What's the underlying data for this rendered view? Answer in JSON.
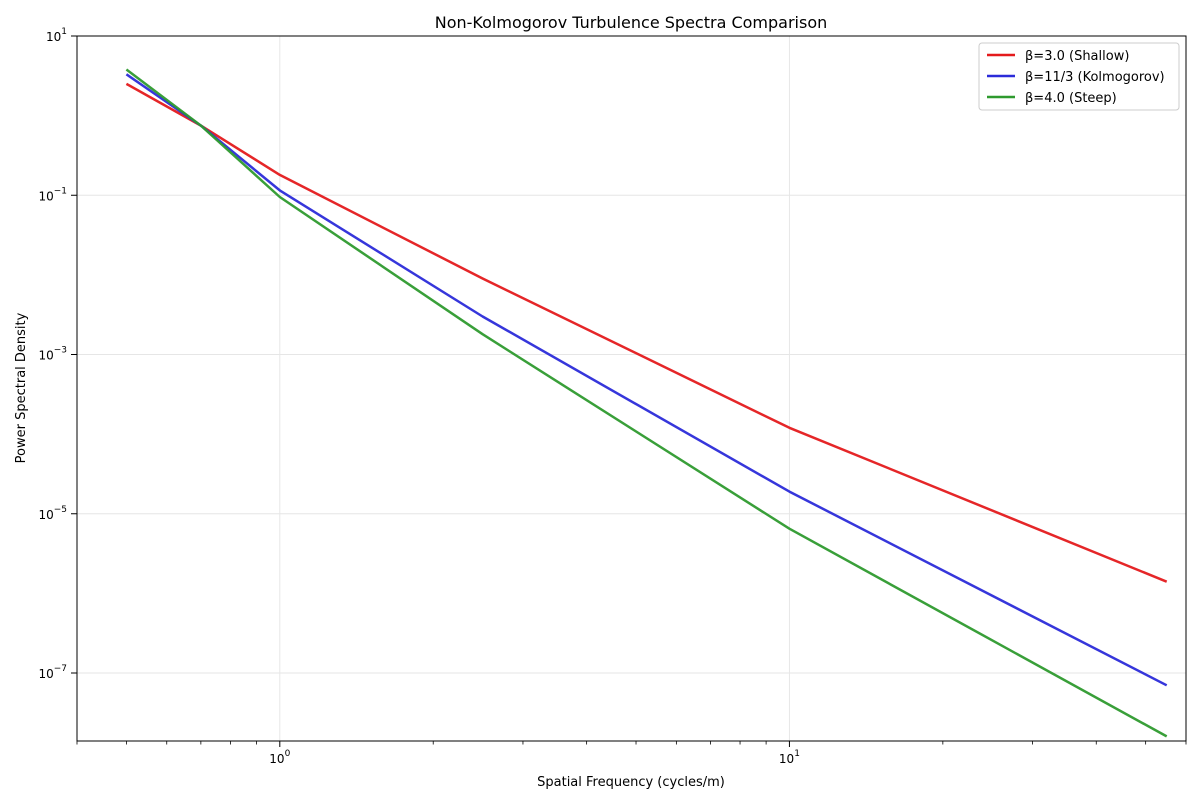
{
  "chart_data": {
    "type": "line",
    "title": "Non-Kolmogorov Turbulence Spectra Comparison",
    "xlabel": "Spatial Frequency (cycles/m)",
    "ylabel": "Power Spectral Density",
    "xscale": "log",
    "yscale": "log",
    "xlim": [
      0.4,
      60
    ],
    "ylim": [
      1.4e-08,
      10
    ],
    "xticks": [
      {
        "value": 1,
        "base": "10",
        "exp": "0"
      },
      {
        "value": 10,
        "base": "10",
        "exp": "1"
      }
    ],
    "yticks": [
      {
        "value": 10,
        "base": "10",
        "exp": "1"
      },
      {
        "value": 0.1,
        "base": "10",
        "exp": "−1"
      },
      {
        "value": 0.001,
        "base": "10",
        "exp": "−3"
      },
      {
        "value": 1e-05,
        "base": "10",
        "exp": "−5"
      },
      {
        "value": 1e-07,
        "base": "10",
        "exp": "−7"
      }
    ],
    "grid": true,
    "legend_position": "top-right",
    "series": [
      {
        "name": "β=3.0 (Shallow)",
        "color": "#e41a1c",
        "x": [
          0.5,
          0.7,
          1.0,
          2.5,
          10,
          55
        ],
        "y": [
          2.5,
          0.75,
          0.18,
          0.009,
          0.00012,
          1.4e-06
        ]
      },
      {
        "name": "β=11/3 (Kolmogorov)",
        "color": "#2b2bd9",
        "x": [
          0.5,
          0.7,
          1.0,
          2.5,
          10,
          55
        ],
        "y": [
          3.3,
          0.75,
          0.115,
          0.003,
          1.9e-05,
          7e-08
        ]
      },
      {
        "name": "β=4.0 (Steep)",
        "color": "#2e9a2e",
        "x": [
          0.5,
          0.7,
          1.0,
          2.5,
          10,
          55
        ],
        "y": [
          3.8,
          0.75,
          0.095,
          0.0018,
          6.5e-06,
          1.6e-08
        ]
      }
    ]
  }
}
